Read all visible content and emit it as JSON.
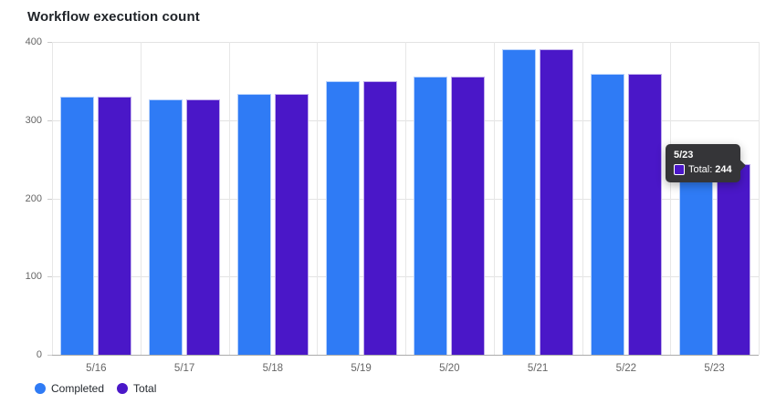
{
  "title": "Workflow execution count",
  "colors": {
    "completed": "#2F7BF5",
    "total": "#4A17C8",
    "grid": "#E3E3E3",
    "axis_line": "#ABABAB",
    "axis_text": "#666666",
    "title_text": "#1F2328",
    "tooltip_bg": "#353538",
    "tooltip_text": "#FFFFFF"
  },
  "legend": [
    {
      "label": "Completed",
      "color_key": "completed"
    },
    {
      "label": "Total",
      "color_key": "total"
    }
  ],
  "tooltip": {
    "date": "5/23",
    "series_label": "Total:",
    "value": "244"
  },
  "chart_data": {
    "type": "bar",
    "title": "Workflow execution count",
    "categories": [
      "5/16",
      "5/17",
      "5/18",
      "5/19",
      "5/20",
      "5/21",
      "5/22",
      "5/23"
    ],
    "series": [
      {
        "name": "Completed",
        "values": [
          330,
          327,
          334,
          350,
          356,
          391,
          359,
          224
        ]
      },
      {
        "name": "Total",
        "values": [
          330,
          327,
          334,
          350,
          356,
          391,
          359,
          244
        ]
      }
    ],
    "xlabel": "",
    "ylabel": "",
    "ylim": [
      0,
      400
    ],
    "yticks": [
      0,
      100,
      200,
      300,
      400
    ],
    "grid": true,
    "legend_position": "bottom-left",
    "annotation": {
      "category": "5/23",
      "series": "Total",
      "value": 244
    }
  }
}
